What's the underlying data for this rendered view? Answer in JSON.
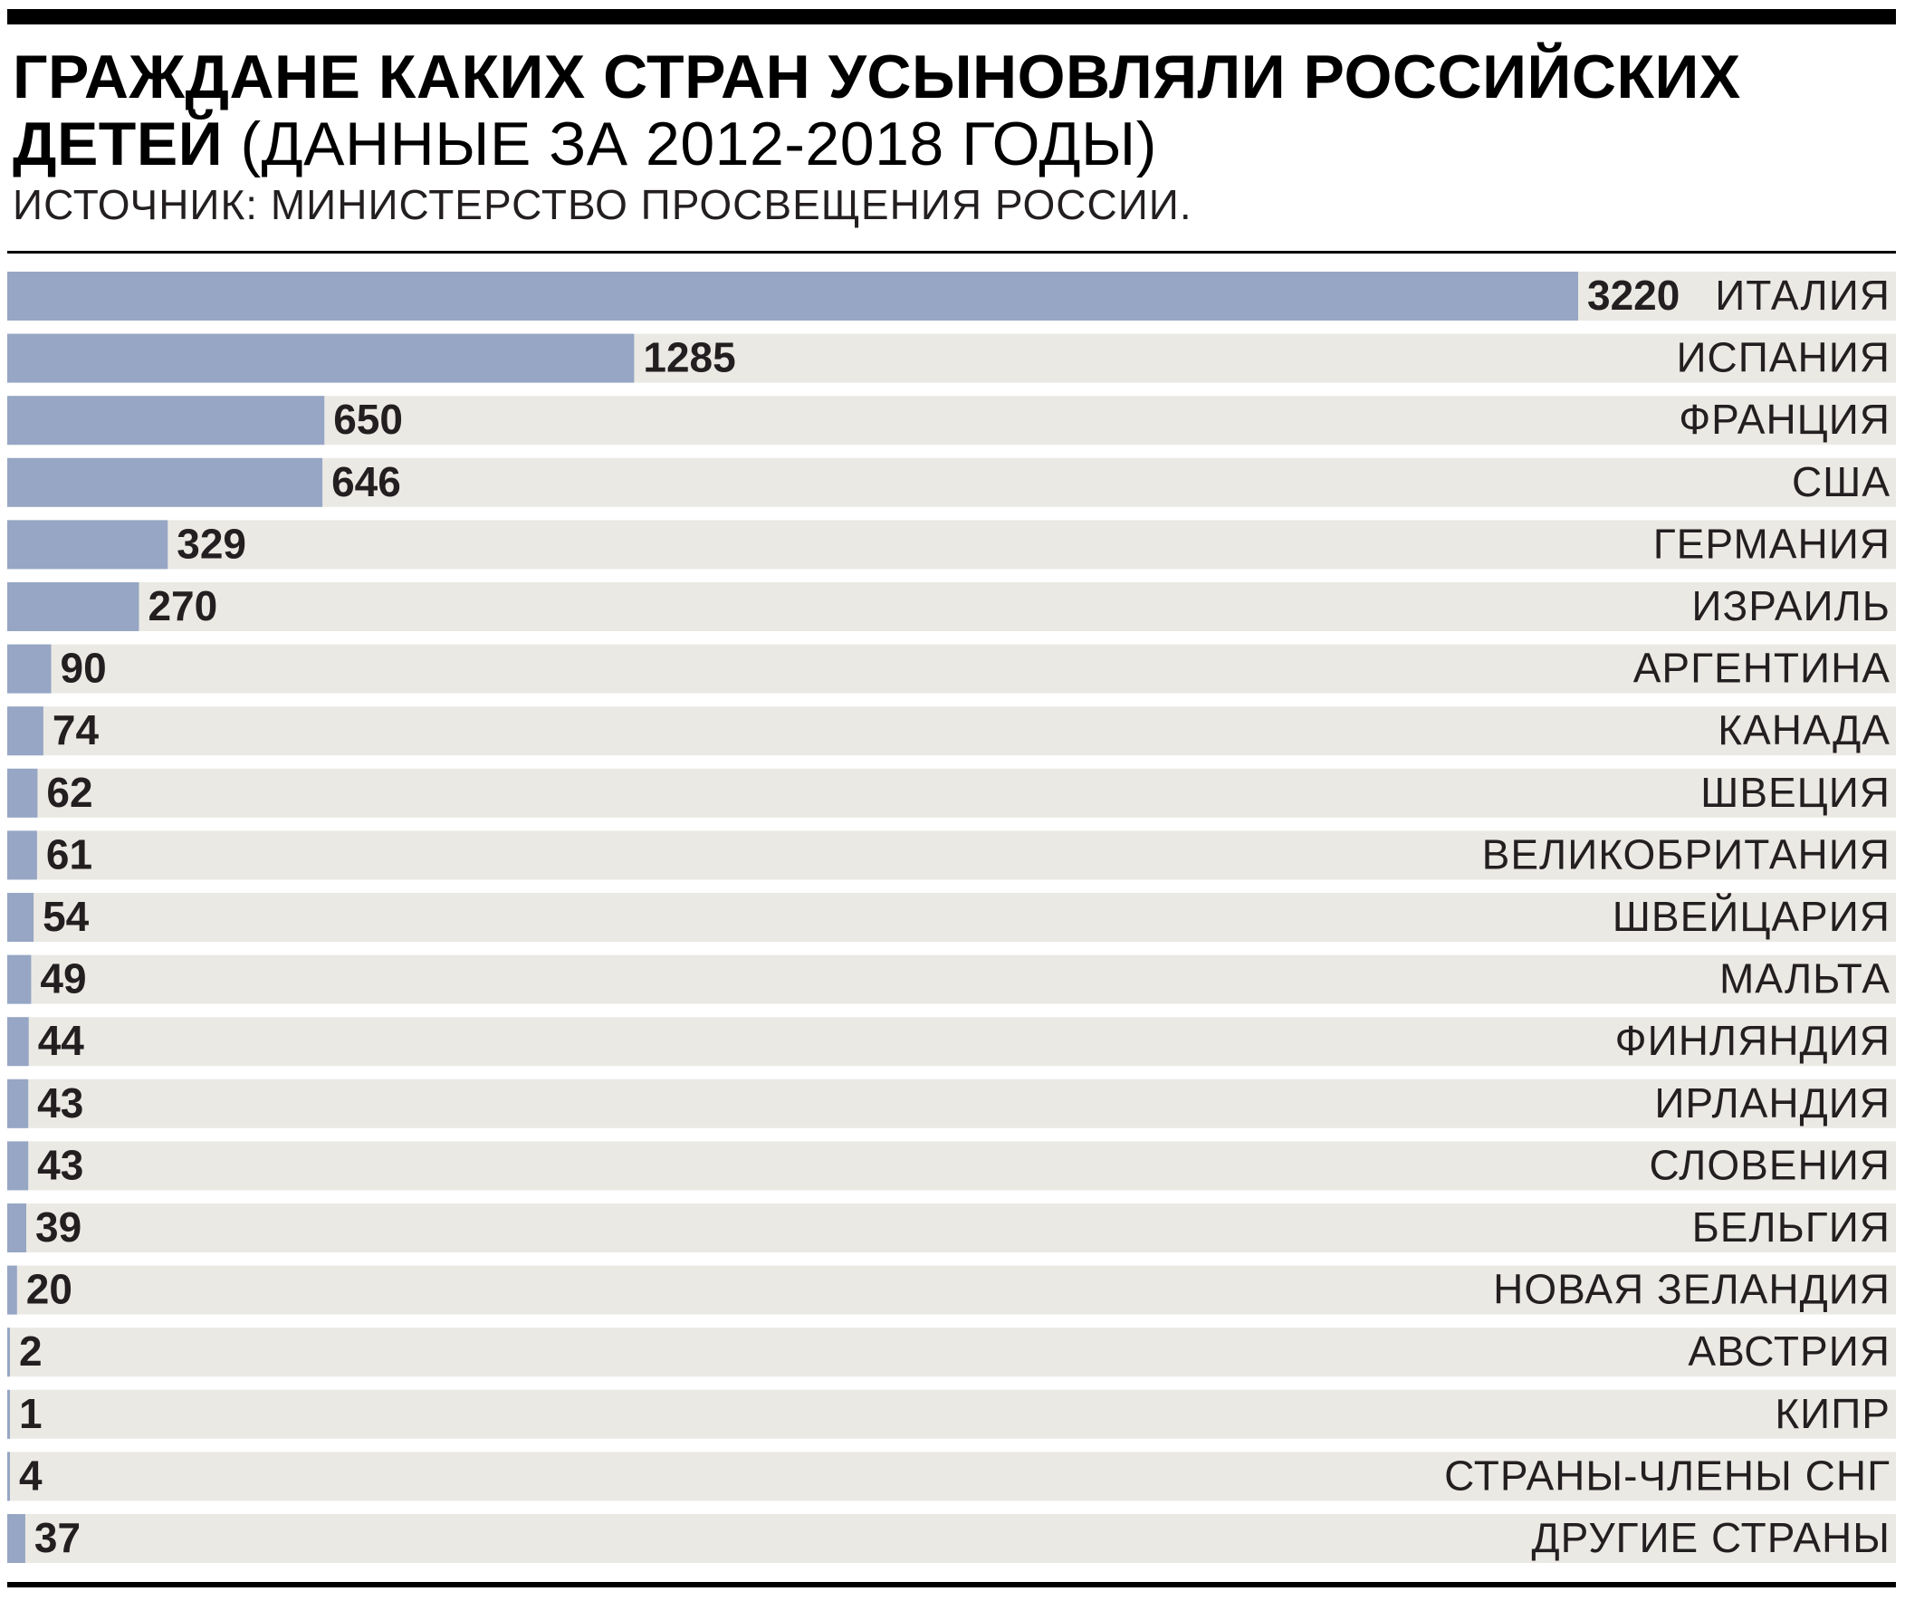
{
  "header": {
    "title_bold": "ГРАЖДАНЕ КАКИХ СТРАН УСЫНОВЛЯЛИ РОССИЙСКИХ ДЕТЕЙ",
    "title_light": "(ДАННЫЕ ЗА 2012-2018 ГОДЫ)",
    "source": "ИСТОЧНИК: МИНИСТЕРСТВО ПРОСВЕЩЕНИЯ РОССИИ."
  },
  "colors": {
    "bar": "#96a6c4",
    "track": "#ebe9e4",
    "text": "#231f20",
    "rule": "#000000"
  },
  "chart_data": {
    "type": "bar",
    "orientation": "horizontal",
    "title": "ГРАЖДАНЕ КАКИХ СТРАН УСЫНОВЛЯЛИ РОССИЙСКИХ ДЕТЕЙ (ДАННЫЕ ЗА 2012-2018 ГОДЫ)",
    "categories": [
      "ИТАЛИЯ",
      "ИСПАНИЯ",
      "ФРАНЦИЯ",
      "США",
      "ГЕРМАНИЯ",
      "ИЗРАИЛЬ",
      "АРГЕНТИНА",
      "КАНАДА",
      "ШВЕЦИЯ",
      "ВЕЛИКОБРИТАНИЯ",
      "ШВЕЙЦАРИЯ",
      "МАЛЬТА",
      "ФИНЛЯНДИЯ",
      "ИРЛАНДИЯ",
      "СЛОВЕНИЯ",
      "БЕЛЬГИЯ",
      "НОВАЯ ЗЕЛАНДИЯ",
      "АВСТРИЯ",
      "КИПР",
      "СТРАНЫ-ЧЛЕНЫ СНГ",
      "ДРУГИЕ СТРАНЫ"
    ],
    "values": [
      3220,
      1285,
      650,
      646,
      329,
      270,
      90,
      74,
      62,
      61,
      54,
      49,
      44,
      43,
      43,
      39,
      20,
      2,
      1,
      4,
      37
    ],
    "xlim": [
      0,
      3220
    ],
    "grid": false,
    "legend": "none"
  }
}
